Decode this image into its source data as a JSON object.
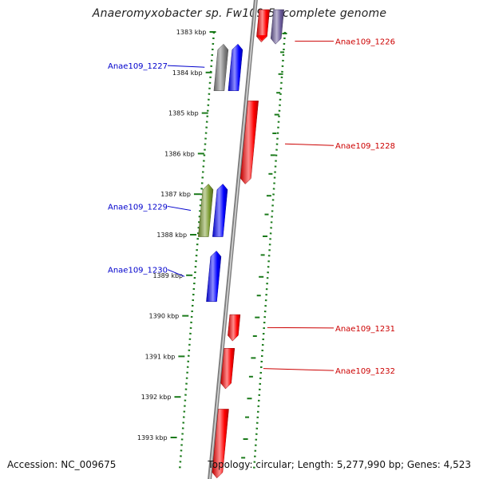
{
  "title": "Anaeromyxobacter sp. Fw109-5, complete genome",
  "footer": {
    "accession": "Accession: NC_009675",
    "topology": "Topology: circular; Length: 5,277,990 bp; Genes: 4,523"
  },
  "colors": {
    "forward_gene": "#ff0000",
    "reverse_gene": "#0000ff",
    "other_gene": "#808080",
    "rna_gene": "#7a9a2e",
    "purple_gene": "#6a5a9a",
    "gc_dots": "#1a7a1a",
    "backbone": "#808080",
    "forward_label": "#cc0000",
    "reverse_label": "#0000cc"
  },
  "ticks": [
    {
      "kbp": 1383,
      "label": "1383 kbp"
    },
    {
      "kbp": 1384,
      "label": "1384 kbp"
    },
    {
      "kbp": 1385,
      "label": "1385 kbp"
    },
    {
      "kbp": 1386,
      "label": "1386 kbp"
    },
    {
      "kbp": 1387,
      "label": "1387 kbp"
    },
    {
      "kbp": 1388,
      "label": "1388 kbp"
    },
    {
      "kbp": 1389,
      "label": "1389 kbp"
    },
    {
      "kbp": 1390,
      "label": "1390 kbp"
    },
    {
      "kbp": 1391,
      "label": "1391 kbp"
    },
    {
      "kbp": 1392,
      "label": "1392 kbp"
    },
    {
      "kbp": 1393,
      "label": "1393 kbp"
    }
  ],
  "genes": [
    {
      "id": "g-1226-red",
      "start": 1382.45,
      "end": 1383.25,
      "strand": "forward",
      "color": "forward_gene"
    },
    {
      "id": "g-1226-purple",
      "start": 1382.45,
      "end": 1383.3,
      "strand": "forward",
      "color": "purple_gene"
    },
    {
      "id": "g-1227-grey",
      "start": 1383.3,
      "end": 1384.45,
      "strand": "reverse",
      "color": "other_gene"
    },
    {
      "id": "g-1227-blue",
      "start": 1383.3,
      "end": 1384.45,
      "strand": "reverse",
      "color": "reverse_gene"
    },
    {
      "id": "g-1228",
      "start": 1384.7,
      "end": 1386.75,
      "strand": "forward",
      "color": "forward_gene"
    },
    {
      "id": "g-1229-rna",
      "start": 1386.75,
      "end": 1388.05,
      "strand": "reverse",
      "color": "rna_gene"
    },
    {
      "id": "g-1229",
      "start": 1386.75,
      "end": 1388.05,
      "strand": "reverse",
      "color": "reverse_gene"
    },
    {
      "id": "g-1230",
      "start": 1388.4,
      "end": 1389.65,
      "strand": "reverse",
      "color": "reverse_gene"
    },
    {
      "id": "g-1231",
      "start": 1389.97,
      "end": 1390.62,
      "strand": "forward",
      "color": "forward_gene"
    },
    {
      "id": "g-1232",
      "start": 1390.8,
      "end": 1391.8,
      "strand": "forward",
      "color": "forward_gene"
    },
    {
      "id": "g-1233",
      "start": 1392.3,
      "end": 1394.0,
      "strand": "forward",
      "color": "forward_gene"
    }
  ],
  "labels": [
    {
      "text": "Anae109_1226",
      "gene_kbp": 1383.23,
      "side": "right",
      "label_kbp": 1383.23,
      "color": "forward_label"
    },
    {
      "text": "Anae109_1227",
      "gene_kbp": 1383.87,
      "side": "left",
      "label_kbp": 1383.83,
      "color": "reverse_label"
    },
    {
      "text": "Anae109_1228",
      "gene_kbp": 1385.76,
      "side": "right",
      "label_kbp": 1385.8,
      "color": "forward_label"
    },
    {
      "text": "Anae109_1229",
      "gene_kbp": 1387.4,
      "side": "left",
      "label_kbp": 1387.3,
      "color": "reverse_label"
    },
    {
      "text": "Anae109_1230",
      "gene_kbp": 1389.03,
      "side": "left",
      "label_kbp": 1388.86,
      "color": "reverse_label"
    },
    {
      "text": "Anae109_1231",
      "gene_kbp": 1390.29,
      "side": "right",
      "label_kbp": 1390.3,
      "color": "forward_label"
    },
    {
      "text": "Anae109_1232",
      "gene_kbp": 1391.3,
      "side": "right",
      "label_kbp": 1391.35,
      "color": "forward_label"
    }
  ]
}
